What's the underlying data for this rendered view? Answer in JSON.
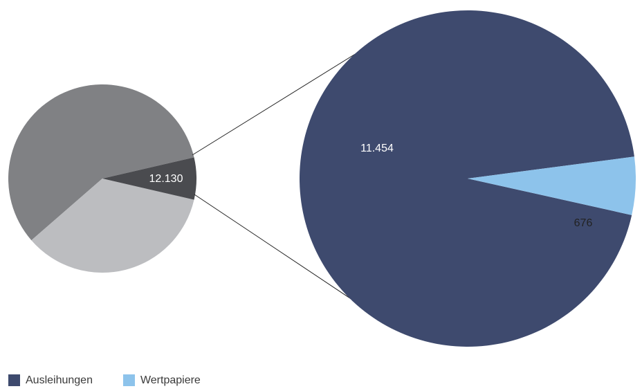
{
  "chart_data": [
    {
      "type": "pie",
      "slices": [
        {
          "label": "",
          "color": "#808184"
        },
        {
          "label": "",
          "color": "#bcbdc0"
        },
        {
          "label": "12.130",
          "value": 12130,
          "color": "#4a4b4f",
          "highlight": true
        }
      ]
    },
    {
      "type": "pie",
      "slices": [
        {
          "label": "11.454",
          "name": "Ausleihungen",
          "value": 11454,
          "color": "#3e4a6e"
        },
        {
          "label": "676",
          "name": "Wertpapiere",
          "value": 676,
          "color": "#8dc3eb"
        }
      ]
    }
  ],
  "legend": [
    {
      "name": "Ausleihungen",
      "color": "#3e4a6e"
    },
    {
      "name": "Wertpapiere",
      "color": "#8dc3eb"
    }
  ],
  "label_colors": {
    "light": "#ffffff",
    "dark": "#222222"
  }
}
